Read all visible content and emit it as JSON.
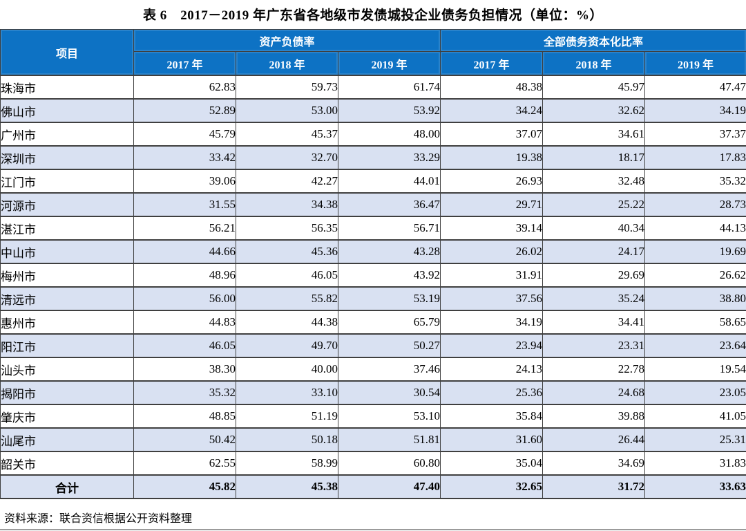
{
  "title": "表 6　2017－2019 年广东省各地级市发债城投企业债务负担情况（单位：%）",
  "table": {
    "corner_header": "项目",
    "groups": [
      {
        "label": "资产负债率",
        "years": [
          "2017 年",
          "2018 年",
          "2019 年"
        ]
      },
      {
        "label": "全部债务资本化比率",
        "years": [
          "2017 年",
          "2018 年",
          "2019 年"
        ]
      }
    ],
    "rows": [
      {
        "name": "珠海市",
        "values": [
          "62.83",
          "59.73",
          "61.74",
          "48.38",
          "45.97",
          "47.47"
        ]
      },
      {
        "name": "佛山市",
        "values": [
          "52.89",
          "53.00",
          "53.92",
          "34.24",
          "32.62",
          "34.19"
        ]
      },
      {
        "name": "广州市",
        "values": [
          "45.79",
          "45.37",
          "48.00",
          "37.07",
          "34.61",
          "37.37"
        ]
      },
      {
        "name": "深圳市",
        "values": [
          "33.42",
          "32.70",
          "33.29",
          "19.38",
          "18.17",
          "17.83"
        ]
      },
      {
        "name": "江门市",
        "values": [
          "39.06",
          "42.27",
          "44.01",
          "26.93",
          "32.48",
          "35.32"
        ]
      },
      {
        "name": "河源市",
        "values": [
          "31.55",
          "34.38",
          "36.47",
          "29.71",
          "25.22",
          "28.73"
        ]
      },
      {
        "name": "湛江市",
        "values": [
          "56.21",
          "56.35",
          "56.71",
          "39.14",
          "40.34",
          "44.13"
        ]
      },
      {
        "name": "中山市",
        "values": [
          "44.66",
          "45.36",
          "43.28",
          "26.02",
          "24.17",
          "19.69"
        ]
      },
      {
        "name": "梅州市",
        "values": [
          "48.96",
          "46.05",
          "43.92",
          "31.91",
          "29.69",
          "26.62"
        ]
      },
      {
        "name": "清远市",
        "values": [
          "56.00",
          "55.82",
          "53.19",
          "37.56",
          "35.24",
          "38.80"
        ]
      },
      {
        "name": "惠州市",
        "values": [
          "44.83",
          "44.38",
          "65.79",
          "34.19",
          "34.41",
          "58.65"
        ]
      },
      {
        "name": "阳江市",
        "values": [
          "46.05",
          "49.70",
          "50.27",
          "23.94",
          "23.31",
          "23.64"
        ]
      },
      {
        "name": "汕头市",
        "values": [
          "38.30",
          "40.00",
          "37.46",
          "24.13",
          "22.78",
          "19.54"
        ]
      },
      {
        "name": "揭阳市",
        "values": [
          "35.32",
          "33.10",
          "30.54",
          "25.36",
          "24.68",
          "23.05"
        ]
      },
      {
        "name": "肇庆市",
        "values": [
          "48.85",
          "51.19",
          "53.10",
          "35.84",
          "39.88",
          "41.05"
        ]
      },
      {
        "name": "汕尾市",
        "values": [
          "50.42",
          "50.18",
          "51.81",
          "31.60",
          "26.44",
          "25.31"
        ]
      },
      {
        "name": "韶关市",
        "values": [
          "62.55",
          "58.99",
          "60.80",
          "35.04",
          "34.69",
          "31.83"
        ]
      }
    ],
    "total": {
      "name": "合计",
      "values": [
        "45.82",
        "45.38",
        "47.40",
        "32.65",
        "31.72",
        "33.63"
      ]
    }
  },
  "footer": {
    "source": "资料来源：联合资信根据公开资料整理"
  },
  "colors": {
    "header_bg": "#0d72c4",
    "header_text": "#ffffff",
    "stripe_bg": "#d9e1f2",
    "border": "#3f3f3f"
  }
}
